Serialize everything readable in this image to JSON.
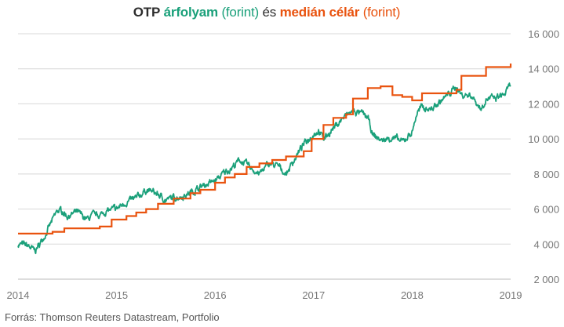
{
  "title": {
    "part1": "OTP",
    "part2": "árfolyam",
    "part3": "(forint)",
    "part4": "és",
    "part5": "medián célár",
    "part6": "(forint)"
  },
  "source": "Forrás: Thomson Reuters Datastream, Portfolio",
  "colors": {
    "price": "#1aa07a",
    "target": "#e9530f",
    "grid": "#d8d8d8",
    "axis": "#777777"
  },
  "chart_data": {
    "type": "line",
    "xlim": [
      2014,
      2019
    ],
    "ylim": [
      2000,
      16000
    ],
    "x_ticks": [
      "2014",
      "2015",
      "2016",
      "2017",
      "2018",
      "2019"
    ],
    "y_ticks": [
      "2 000",
      "4 000",
      "6 000",
      "8 000",
      "10 000",
      "12 000",
      "14 000",
      "16 000"
    ],
    "y_tick_values": [
      2000,
      4000,
      6000,
      8000,
      10000,
      12000,
      14000,
      16000
    ],
    "grid": "horizontal",
    "series": [
      {
        "key": "price",
        "style": "noisy-line",
        "x": [
          2014.0,
          2014.1,
          2014.17,
          2014.22,
          2014.3,
          2014.4,
          2014.45,
          2014.5,
          2014.6,
          2014.7,
          2014.75,
          2014.85,
          2014.9,
          2015.0,
          2015.1,
          2015.2,
          2015.3,
          2015.4,
          2015.5,
          2015.55,
          2015.7,
          2015.8,
          2015.9,
          2016.0,
          2016.1,
          2016.2,
          2016.25,
          2016.35,
          2016.45,
          2016.55,
          2016.65,
          2016.72,
          2016.8,
          2016.9,
          2017.0,
          2017.05,
          2017.1,
          2017.2,
          2017.3,
          2017.4,
          2017.5,
          2017.55,
          2017.6,
          2017.7,
          2017.8,
          2017.9,
          2018.0,
          2018.05,
          2018.1,
          2018.2,
          2018.3,
          2018.4,
          2018.45,
          2018.5,
          2018.6,
          2018.7,
          2018.75,
          2018.85,
          2018.95,
          2019.0
        ],
        "y": [
          4000,
          3900,
          3600,
          4000,
          4800,
          5900,
          5900,
          5600,
          5800,
          5400,
          5600,
          5700,
          5900,
          6000,
          6400,
          6600,
          7100,
          6900,
          6500,
          6600,
          6800,
          7100,
          7400,
          7600,
          8100,
          8500,
          8800,
          8400,
          8000,
          8600,
          8400,
          8000,
          8800,
          9700,
          10300,
          10500,
          10000,
          10600,
          11200,
          11600,
          11400,
          11200,
          10200,
          9900,
          10100,
          9800,
          10400,
          11500,
          11800,
          11700,
          12200,
          12700,
          13000,
          12500,
          12500,
          11700,
          12300,
          12300,
          12600,
          13100
        ]
      },
      {
        "key": "target",
        "style": "step",
        "x": [
          2014.0,
          2014.15,
          2014.35,
          2014.47,
          2014.83,
          2014.95,
          2015.1,
          2015.2,
          2015.3,
          2015.42,
          2015.58,
          2015.75,
          2015.85,
          2016.0,
          2016.1,
          2016.2,
          2016.32,
          2016.45,
          2016.58,
          2016.72,
          2016.8,
          2016.9,
          2016.98,
          2017.1,
          2017.2,
          2017.33,
          2017.4,
          2017.55,
          2017.68,
          2017.8,
          2017.9,
          2018.0,
          2018.05,
          2018.1,
          2018.2,
          2018.3,
          2018.45,
          2018.5,
          2018.58,
          2018.7,
          2018.75,
          2018.85,
          2018.95,
          2019.0
        ],
        "y": [
          4600,
          4600,
          4700,
          4900,
          5000,
          5400,
          5600,
          5800,
          6000,
          6300,
          6600,
          6900,
          7100,
          7500,
          7800,
          8000,
          8400,
          8600,
          8800,
          9000,
          9000,
          9300,
          10000,
          10800,
          11200,
          11400,
          12300,
          12900,
          13000,
          12500,
          12400,
          12200,
          12200,
          12600,
          12600,
          12600,
          12800,
          13600,
          13600,
          13600,
          14100,
          14100,
          14100,
          14300
        ]
      }
    ]
  }
}
